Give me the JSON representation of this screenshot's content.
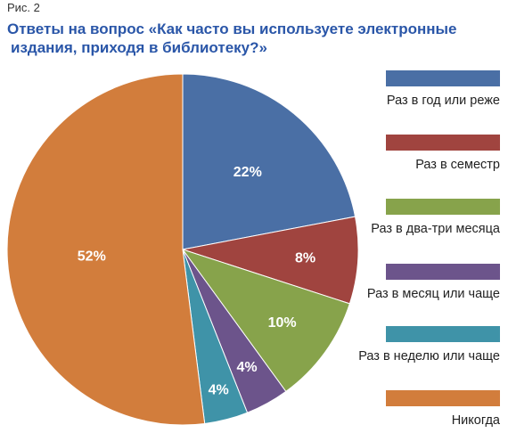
{
  "figure_label": "Рис. 2",
  "title_lines": [
    "Ответы на вопрос «Как часто вы используете электронные",
    "издания, приходя в библиотеку?»"
  ],
  "chart_data": {
    "type": "pie",
    "title": "Ответы на вопрос «Как часто вы используете электронные издания, приходя в библиотеку?»",
    "start_angle": "12 o'clock",
    "direction": "clockwise",
    "legend_position": "right",
    "slices": [
      {
        "label": "Раз в год или реже",
        "value": 22,
        "value_label": "22%",
        "color": "#4a6fa5"
      },
      {
        "label": "Раз в семестр",
        "value": 8,
        "value_label": "8%",
        "color": "#a0443f"
      },
      {
        "label": "Раз в два-три месяца",
        "value": 10,
        "value_label": "10%",
        "color": "#87a34b"
      },
      {
        "label": "Раз в месяц или чаще",
        "value": 4,
        "value_label": "4%",
        "color": "#6c548b"
      },
      {
        "label": "Раз в неделю или чаще",
        "value": 4,
        "value_label": "4%",
        "color": "#3f93a8"
      },
      {
        "label": "Никогда",
        "value": 52,
        "value_label": "52%",
        "color": "#d27d3c"
      }
    ]
  }
}
